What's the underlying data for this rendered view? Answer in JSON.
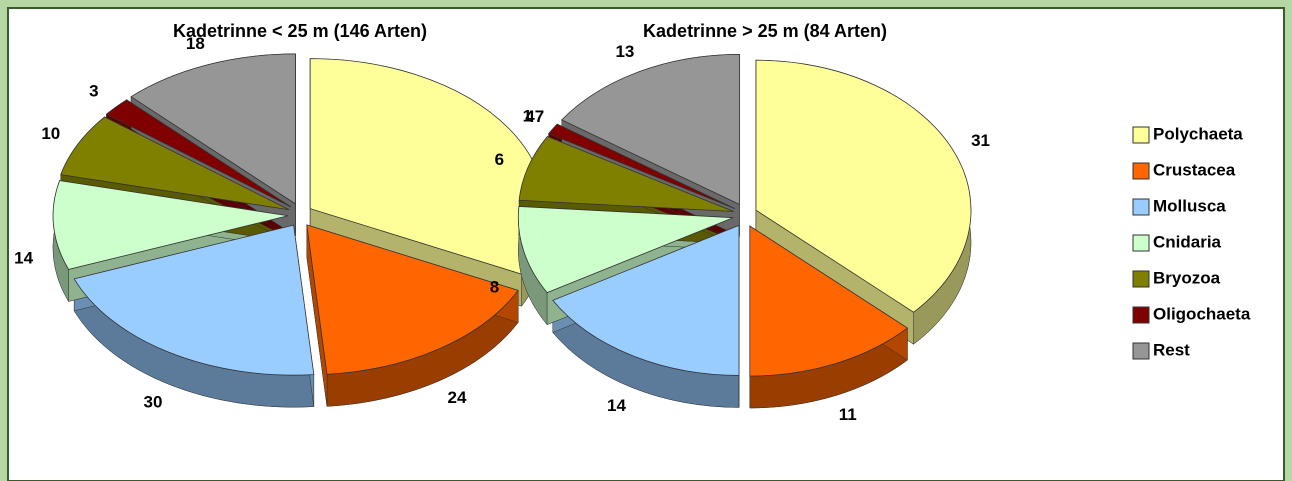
{
  "chart_data": [
    {
      "type": "pie",
      "title": "Kadetrinne < 25 m (146 Arten)",
      "categories": [
        "Polychaeta",
        "Crustacea",
        "Mollusca",
        "Cnidaria",
        "Bryozoa",
        "Oligochaeta",
        "Rest"
      ],
      "values": [
        47,
        24,
        30,
        14,
        10,
        3,
        18
      ],
      "colors": [
        "#ffff99",
        "#ff6600",
        "#99ccff",
        "#ccffcc",
        "#808000",
        "#800000",
        "#969696"
      ]
    },
    {
      "type": "pie",
      "title": "Kadetrinne > 25 m (84 Arten)",
      "categories": [
        "Polychaeta",
        "Crustacea",
        "Mollusca",
        "Cnidaria",
        "Bryozoa",
        "Oligochaeta",
        "Rest"
      ],
      "values": [
        31,
        11,
        14,
        8,
        6,
        1,
        13
      ],
      "colors": [
        "#ffff99",
        "#ff6600",
        "#99ccff",
        "#ccffcc",
        "#808000",
        "#800000",
        "#969696"
      ],
      "legend": "right"
    }
  ]
}
